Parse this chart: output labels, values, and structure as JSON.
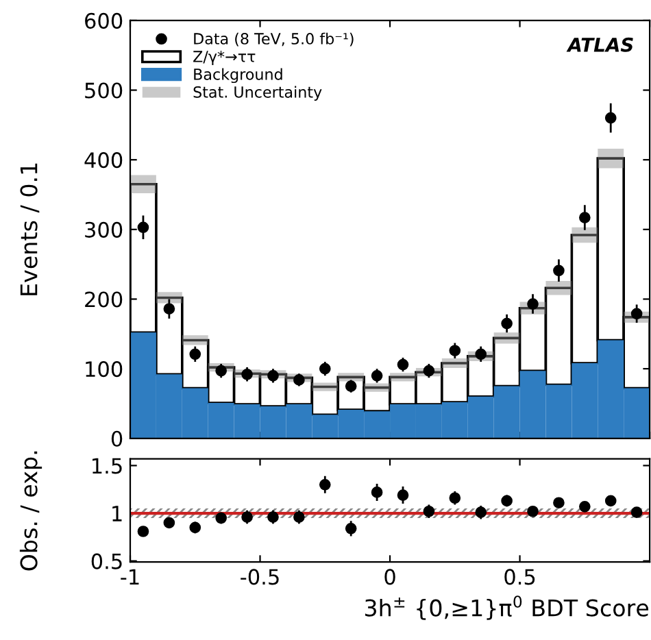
{
  "chart_data": [
    {
      "type": "bar",
      "ylabel": "Events / 0.1",
      "annotations": [
        "ATLAS",
        "Stat. Uncertainty"
      ],
      "x": [
        -0.95,
        -0.85,
        -0.75,
        -0.65,
        -0.55,
        -0.45,
        -0.35,
        -0.25,
        -0.15,
        -0.05,
        0.05,
        0.15,
        0.25,
        0.35,
        0.45,
        0.55,
        0.65,
        0.75,
        0.85,
        0.95
      ],
      "xlim": [
        -1,
        1
      ],
      "ylim": [
        0,
        600
      ],
      "yticks": [
        0,
        100,
        200,
        300,
        400,
        500,
        600
      ],
      "tick_labels": "y",
      "legend": "top left",
      "grid": false,
      "stacked": true,
      "series": [
        {
          "name": "Background",
          "type": "bar",
          "color": "#2f7dc1",
          "values": [
            152,
            92,
            72,
            51,
            49,
            46,
            49,
            34,
            41,
            39,
            49,
            49,
            52,
            60,
            75,
            97,
            77,
            108,
            141,
            72
          ]
        },
        {
          "name": "Z/γ*→ττ",
          "type": "bar",
          "color": "#ffffff",
          "values": [
            213,
            110,
            69,
            51,
            44,
            46,
            38,
            40,
            47,
            34,
            39,
            46,
            56,
            58,
            69,
            90,
            139,
            184,
            261,
            102
          ],
          "errors": [
            13,
            8,
            7,
            6,
            6,
            6,
            6,
            6,
            6,
            6,
            6,
            6,
            7,
            7,
            8,
            9,
            10,
            11,
            14,
            8
          ]
        },
        {
          "name": "Data (8 TeV, 5.0 fb⁻¹)",
          "type": "scatter",
          "color": "#000000",
          "marker": "circle",
          "values": [
            303,
            186,
            121,
            97,
            92,
            90,
            84,
            100,
            75,
            90,
            106,
            97,
            126,
            121,
            165,
            193,
            241,
            317,
            460,
            179
          ],
          "errors": [
            17,
            14,
            11,
            10,
            10,
            10,
            9,
            10,
            9,
            10,
            10,
            10,
            11,
            11,
            13,
            14,
            16,
            18,
            21,
            13
          ]
        }
      ]
    },
    {
      "type": "scatter",
      "xlabel": "3h$^{±}$ {0,≥1}π$^{0}$ BDT Score",
      "ylabel": "Obs. / exp.",
      "xlim": [
        -1,
        1
      ],
      "ylim": [
        0.49,
        1.57
      ],
      "xticks": [
        -1,
        -0.5,
        0,
        0.5
      ],
      "yticks": [
        0.5,
        1,
        1.5
      ],
      "grid": false,
      "marker": "circle",
      "x": [
        -0.95,
        -0.85,
        -0.75,
        -0.65,
        -0.55,
        -0.45,
        -0.35,
        -0.25,
        -0.15,
        -0.05,
        0.05,
        0.15,
        0.25,
        0.35,
        0.45,
        0.55,
        0.65,
        0.75,
        0.85,
        0.95
      ],
      "series": [
        {
          "color": "#000000",
          "values": [
            0.81,
            0.9,
            0.85,
            0.95,
            0.96,
            0.96,
            0.96,
            1.3,
            0.84,
            1.22,
            1.19,
            1.02,
            1.16,
            1.01,
            1.13,
            1.02,
            1.11,
            1.07,
            1.13,
            1.01
          ],
          "errors": [
            0.03,
            0.05,
            0.06,
            0.06,
            0.07,
            0.07,
            0.07,
            0.09,
            0.08,
            0.09,
            0.09,
            0.07,
            0.07,
            0.07,
            0.06,
            0.05,
            0.05,
            0.04,
            0.04,
            0.05
          ]
        }
      ],
      "ref_lines": [
        {
          "axis": "y",
          "value": 1,
          "color": "#cc2222"
        }
      ],
      "bands": [
        {
          "axis": "y",
          "from": 0.95,
          "to": 1.05,
          "color": "#888888"
        }
      ]
    }
  ]
}
